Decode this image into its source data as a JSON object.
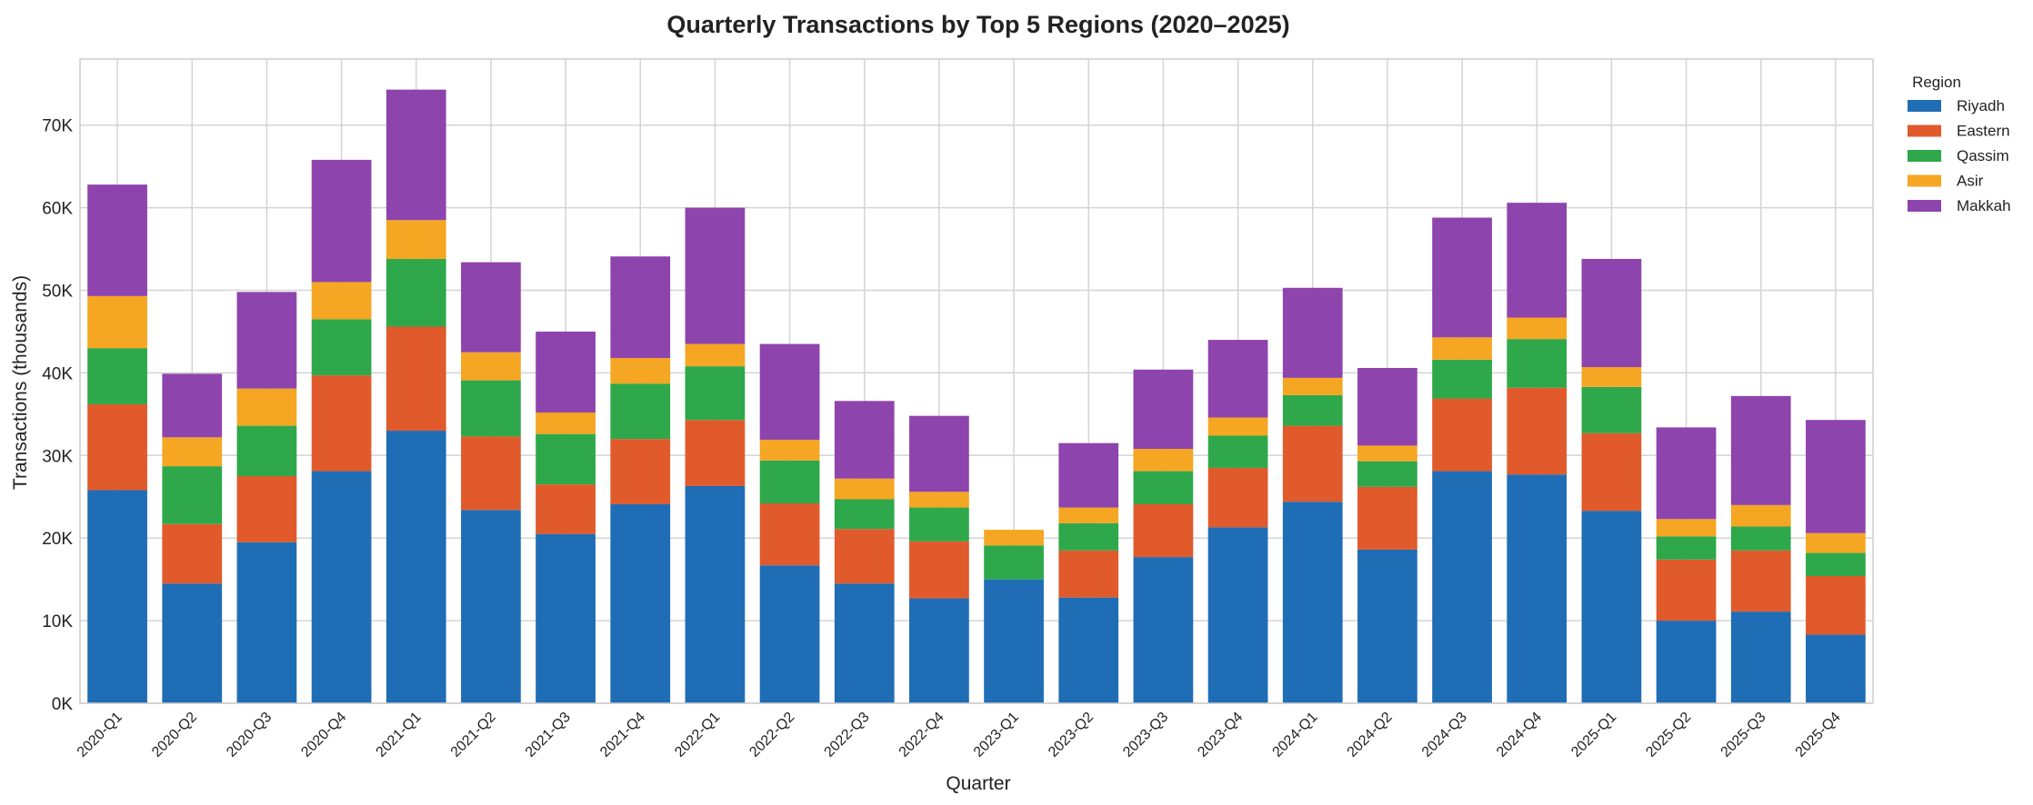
{
  "chart_data": {
    "type": "bar",
    "stacked": true,
    "title": "Quarterly Transactions by Top 5 Regions (2020–2025)",
    "xlabel": "Quarter",
    "ylabel": "Transactions (thousands)",
    "ylim": [
      0,
      78000
    ],
    "yticks": [
      0,
      10000,
      20000,
      30000,
      40000,
      50000,
      60000,
      70000
    ],
    "ytick_labels": [
      "0K",
      "10K",
      "20K",
      "30K",
      "40K",
      "50K",
      "60K",
      "70K"
    ],
    "grid": true,
    "legend": {
      "title": "Region",
      "placement": "outside-right"
    },
    "categories": [
      "2020-Q1",
      "2020-Q2",
      "2020-Q3",
      "2020-Q4",
      "2021-Q1",
      "2021-Q2",
      "2021-Q3",
      "2021-Q4",
      "2022-Q1",
      "2022-Q2",
      "2022-Q3",
      "2022-Q4",
      "2023-Q1",
      "2023-Q2",
      "2023-Q3",
      "2023-Q4",
      "2024-Q1",
      "2024-Q2",
      "2024-Q3",
      "2024-Q4",
      "2025-Q1",
      "2025-Q2",
      "2025-Q3",
      "2025-Q4"
    ],
    "series": [
      {
        "name": "Riyadh",
        "color": "#1f6db5",
        "values": [
          25800,
          14500,
          19500,
          28100,
          33000,
          23400,
          20500,
          24100,
          26300,
          16700,
          14500,
          12700,
          15000,
          12800,
          17700,
          21300,
          24400,
          18600,
          28100,
          27700,
          23300,
          10000,
          11100,
          8300
        ]
      },
      {
        "name": "Eastern",
        "color": "#e05a2b",
        "values": [
          10400,
          7200,
          8000,
          11600,
          12600,
          8900,
          6000,
          7900,
          8000,
          7500,
          6600,
          6900,
          0,
          5700,
          6400,
          7200,
          9200,
          7600,
          8800,
          10500,
          9400,
          7400,
          7400,
          7100
        ]
      },
      {
        "name": "Qassim",
        "color": "#2ea84a",
        "values": [
          6800,
          7000,
          6100,
          6800,
          8200,
          6800,
          6100,
          6700,
          6500,
          5200,
          3600,
          4100,
          4100,
          3300,
          4000,
          3900,
          3700,
          3100,
          4700,
          5900,
          5600,
          2800,
          2900,
          2800
        ]
      },
      {
        "name": "Asir",
        "color": "#f5a623",
        "values": [
          6300,
          3500,
          4500,
          4500,
          4700,
          3400,
          2600,
          3100,
          2700,
          2500,
          2500,
          1900,
          1900,
          1900,
          2700,
          2200,
          2100,
          1900,
          2700,
          2600,
          2400,
          2100,
          2600,
          2400
        ]
      },
      {
        "name": "Makkah",
        "color": "#8e44ad",
        "values": [
          13500,
          7700,
          11700,
          14800,
          15800,
          10900,
          9800,
          12300,
          16500,
          11600,
          9400,
          9200,
          0,
          7800,
          9600,
          9400,
          10900,
          9400,
          14500,
          13900,
          13100,
          11100,
          13200,
          13700
        ]
      }
    ]
  }
}
